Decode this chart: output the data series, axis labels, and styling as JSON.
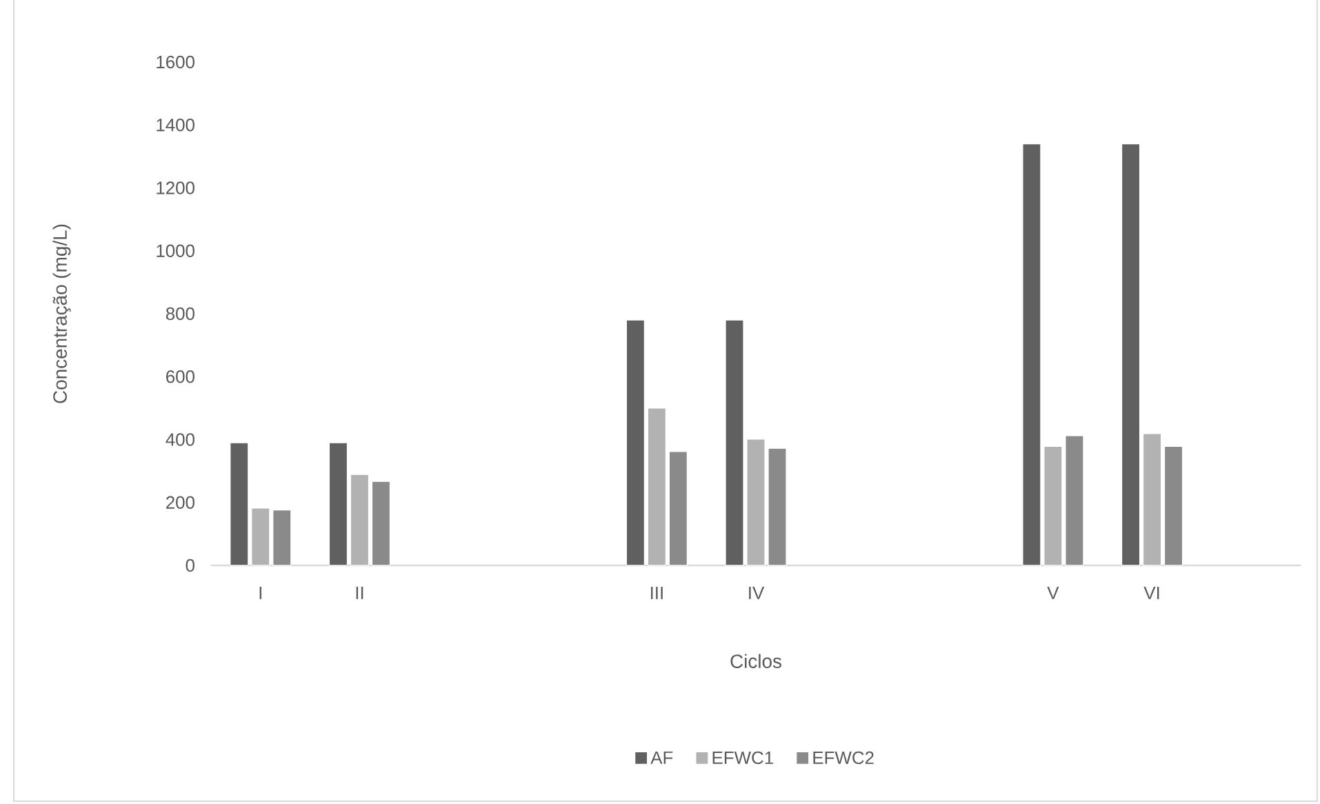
{
  "chart_data": {
    "type": "bar",
    "xlabel": "Ciclos",
    "ylabel": "Concentração (mg/L)",
    "categories": [
      "I",
      "II",
      null,
      null,
      "III",
      "IV",
      null,
      null,
      "V",
      "VI",
      null
    ],
    "series": [
      {
        "name": "AF",
        "color": "#606060",
        "values": [
          390,
          390,
          null,
          null,
          780,
          780,
          null,
          null,
          1340,
          1340,
          null
        ]
      },
      {
        "name": "EFWC1",
        "color": "#b2b2b2",
        "values": [
          182,
          289,
          null,
          null,
          500,
          401,
          null,
          null,
          378,
          419,
          null
        ]
      },
      {
        "name": "EFWC2",
        "color": "#8a8a8a",
        "values": [
          176,
          267,
          null,
          null,
          362,
          372,
          null,
          null,
          412,
          378,
          null
        ]
      }
    ],
    "ylim": [
      0,
      1600
    ],
    "yticks": [
      0,
      200,
      400,
      600,
      800,
      1000,
      1200,
      1400,
      1600
    ],
    "grid": false,
    "legend": "bottom"
  }
}
